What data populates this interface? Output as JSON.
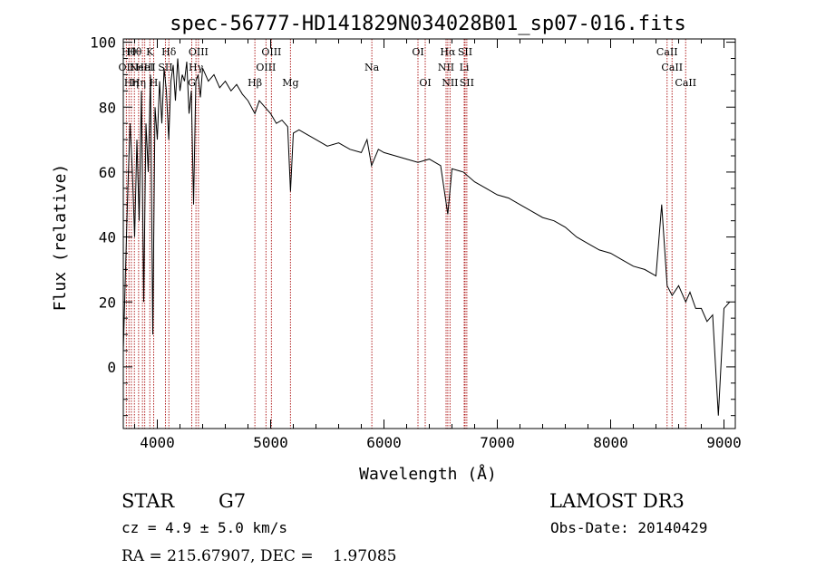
{
  "chart_data": {
    "type": "line",
    "title": "spec-56777-HD141829N034028B01_sp07-016.fits",
    "xlabel": "Wavelength (Å)",
    "ylabel": "Flux (relative)",
    "xlim": [
      3700,
      9100
    ],
    "ylim": [
      -19,
      101
    ],
    "xticks": [
      4000,
      5000,
      6000,
      7000,
      8000,
      9000
    ],
    "yticks": [
      0,
      20,
      40,
      60,
      80,
      100
    ],
    "grid": false,
    "line_color": "#000000",
    "marker_color": "#b22222",
    "series": [
      {
        "x": [
          3700,
          3720,
          3740,
          3760,
          3780,
          3800,
          3820,
          3840,
          3860,
          3880,
          3900,
          3920,
          3940,
          3960,
          3980,
          4000,
          4020,
          4040,
          4060,
          4080,
          4101,
          4120,
          4140,
          4160,
          4180,
          4200,
          4220,
          4240,
          4260,
          4280,
          4300,
          4320,
          4340,
          4360,
          4380,
          4400,
          4450,
          4500,
          4550,
          4600,
          4650,
          4700,
          4750,
          4800,
          4861,
          4900,
          4950,
          5000,
          5050,
          5100,
          5150,
          5175,
          5200,
          5250,
          5300,
          5400,
          5500,
          5600,
          5700,
          5800,
          5850,
          5890,
          5950,
          6000,
          6100,
          6200,
          6300,
          6400,
          6500,
          6563,
          6600,
          6700,
          6800,
          6900,
          7000,
          7100,
          7200,
          7300,
          7400,
          7500,
          7600,
          7700,
          7800,
          7900,
          8000,
          8100,
          8200,
          8300,
          8400,
          8450,
          8498,
          8542,
          8600,
          8662,
          8700,
          8750,
          8800,
          8850,
          8900,
          8950,
          9000,
          9050
        ],
        "y": [
          5,
          30,
          55,
          75,
          60,
          40,
          70,
          45,
          85,
          20,
          75,
          60,
          90,
          10,
          80,
          70,
          88,
          75,
          92,
          85,
          70,
          88,
          93,
          82,
          95,
          85,
          90,
          88,
          94,
          78,
          85,
          50,
          88,
          90,
          83,
          92,
          88,
          90,
          86,
          88,
          85,
          87,
          84,
          82,
          78,
          82,
          80,
          78,
          75,
          76,
          74,
          54,
          72,
          73,
          72,
          70,
          68,
          69,
          67,
          66,
          70,
          62,
          67,
          66,
          65,
          64,
          63,
          64,
          62,
          47,
          61,
          60,
          57,
          55,
          53,
          52,
          50,
          48,
          46,
          45,
          43,
          40,
          38,
          36,
          35,
          33,
          31,
          30,
          28,
          50,
          25,
          22,
          25,
          20,
          23,
          18,
          18,
          14,
          16,
          -15,
          18,
          20
        ]
      }
    ],
    "line_markers": [
      {
        "x": 3727,
        "label": "OII",
        "row": 1
      },
      {
        "x": 3750,
        "label": "Hθ",
        "row": 0
      },
      {
        "x": 3771,
        "label": "Hη",
        "row": 2
      },
      {
        "x": 3798,
        "label": "Hθ",
        "row": 0
      },
      {
        "x": 3835,
        "label": "Hη",
        "row": 2
      },
      {
        "x": 3869,
        "label": "NeIII",
        "row": 1
      },
      {
        "x": 3889,
        "label": "HeI",
        "row": 1
      },
      {
        "x": 3934,
        "label": "K",
        "row": 0
      },
      {
        "x": 3968,
        "label": "H",
        "row": 2
      },
      {
        "x": 4072,
        "label": "SII",
        "row": 1
      },
      {
        "x": 4102,
        "label": "Hδ",
        "row": 0
      },
      {
        "x": 4304,
        "label": "G",
        "row": 2
      },
      {
        "x": 4341,
        "label": "Hγ",
        "row": 1
      },
      {
        "x": 4363,
        "label": "OIII",
        "row": 0
      },
      {
        "x": 4861,
        "label": "Hβ",
        "row": 2
      },
      {
        "x": 4959,
        "label": "OIII",
        "row": 1
      },
      {
        "x": 5007,
        "label": "OIII",
        "row": 0
      },
      {
        "x": 5175,
        "label": "Mg",
        "row": 2
      },
      {
        "x": 5893,
        "label": "Na",
        "row": 1
      },
      {
        "x": 6300,
        "label": "OI",
        "row": 0
      },
      {
        "x": 6364,
        "label": "OI",
        "row": 2
      },
      {
        "x": 6548,
        "label": "NII",
        "row": 1
      },
      {
        "x": 6563,
        "label": "Hα",
        "row": 0
      },
      {
        "x": 6583,
        "label": "NII",
        "row": 2
      },
      {
        "x": 6708,
        "label": "Li",
        "row": 1
      },
      {
        "x": 6716,
        "label": "SII",
        "row": 0
      },
      {
        "x": 6731,
        "label": "SII",
        "row": 2
      },
      {
        "x": 8498,
        "label": "CaII",
        "row": 0
      },
      {
        "x": 8542,
        "label": "CaII",
        "row": 1
      },
      {
        "x": 8662,
        "label": "CaII",
        "row": 2
      }
    ]
  },
  "info": {
    "object_type": "STAR",
    "subclass": "G7",
    "survey": "LAMOST DR3",
    "cz": "cz = 4.9 ± 5.0 km/s",
    "obs_date": "Obs-Date: 20140429",
    "coords": "RA = 215.67907, DEC =    1.97085"
  }
}
